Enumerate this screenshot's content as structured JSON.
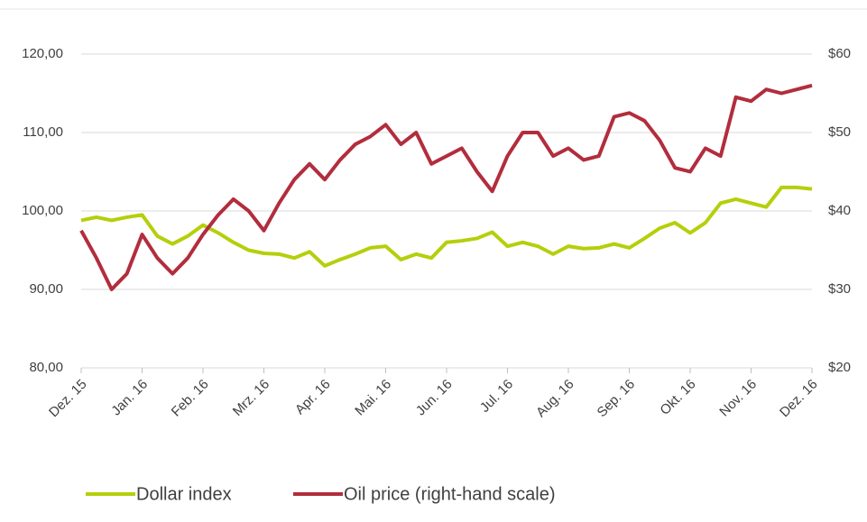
{
  "chart_data": {
    "type": "line",
    "x": [
      0,
      0.25,
      0.5,
      0.75,
      1,
      1.25,
      1.5,
      1.75,
      2,
      2.25,
      2.5,
      2.75,
      3,
      3.25,
      3.5,
      3.75,
      4,
      4.25,
      4.5,
      4.75,
      5,
      5.25,
      5.5,
      5.75,
      6,
      6.25,
      6.5,
      6.75,
      7,
      7.25,
      7.5,
      7.75,
      8,
      8.25,
      8.5,
      8.75,
      9,
      9.25,
      9.5,
      9.75,
      10,
      10.25,
      10.5,
      10.75,
      11,
      11.25,
      11.5,
      11.75,
      12
    ],
    "xlim": [
      0,
      12
    ],
    "xticks": [
      {
        "value": 0,
        "label": "Dez. 15"
      },
      {
        "value": 1,
        "label": "Jan. 16"
      },
      {
        "value": 2,
        "label": "Feb. 16"
      },
      {
        "value": 3,
        "label": "Mrz. 16"
      },
      {
        "value": 4,
        "label": "Apr. 16"
      },
      {
        "value": 5,
        "label": "Mai. 16"
      },
      {
        "value": 6,
        "label": "Jun. 16"
      },
      {
        "value": 7,
        "label": "Jul. 16"
      },
      {
        "value": 8,
        "label": "Aug. 16"
      },
      {
        "value": 9,
        "label": "Sep. 16"
      },
      {
        "value": 10,
        "label": "Okt. 16"
      },
      {
        "value": 11,
        "label": "Nov. 16"
      },
      {
        "value": 12,
        "label": "Dez. 16"
      }
    ],
    "ylim": [
      80,
      120
    ],
    "yticks": [
      {
        "value": 80,
        "label": "80,00"
      },
      {
        "value": 90,
        "label": "90,00"
      },
      {
        "value": 100,
        "label": "100,00"
      },
      {
        "value": 110,
        "label": "110,00"
      },
      {
        "value": 120,
        "label": "120,00"
      }
    ],
    "y2lim": [
      20,
      60
    ],
    "y2ticks": [
      {
        "value": 20,
        "label": "$20"
      },
      {
        "value": 30,
        "label": "$30"
      },
      {
        "value": 40,
        "label": "$40"
      },
      {
        "value": 50,
        "label": "$50"
      },
      {
        "value": 60,
        "label": "$60"
      }
    ],
    "grid": true,
    "legend": "bottom",
    "series": [
      {
        "name": "Dollar index",
        "color": "#b5cf0b",
        "values": [
          98.8,
          99.2,
          98.8,
          99.2,
          99.5,
          96.8,
          95.8,
          96.8,
          98.2,
          97.2,
          96.0,
          95.0,
          94.6,
          94.5,
          94.0,
          94.8,
          93.0,
          93.8,
          94.5,
          95.3,
          95.5,
          93.8,
          94.5,
          94.0,
          96.0,
          96.2,
          96.5,
          97.3,
          95.5,
          96.0,
          95.5,
          94.5,
          95.5,
          95.2,
          95.3,
          95.8,
          95.3,
          96.5,
          97.8,
          98.5,
          97.2,
          98.5,
          101.0,
          101.5,
          101.0,
          100.5,
          103.0,
          103.0,
          102.8
        ]
      },
      {
        "name": "Oil price (right-hand scale)",
        "color": "#b22d3d",
        "axis": "y2",
        "values": [
          37.5,
          34,
          30,
          32,
          37,
          34,
          32,
          34,
          37,
          39.5,
          41.5,
          40,
          37.5,
          41,
          44,
          46,
          44,
          46.5,
          48.5,
          49.5,
          51,
          48.5,
          50,
          46,
          47,
          48,
          45,
          42.5,
          47,
          50,
          50,
          47,
          48,
          46.5,
          47,
          52,
          52.5,
          51.5,
          49,
          45.5,
          45,
          48,
          47,
          54.5,
          54,
          55.5,
          55,
          55.5,
          56
        ]
      }
    ]
  }
}
